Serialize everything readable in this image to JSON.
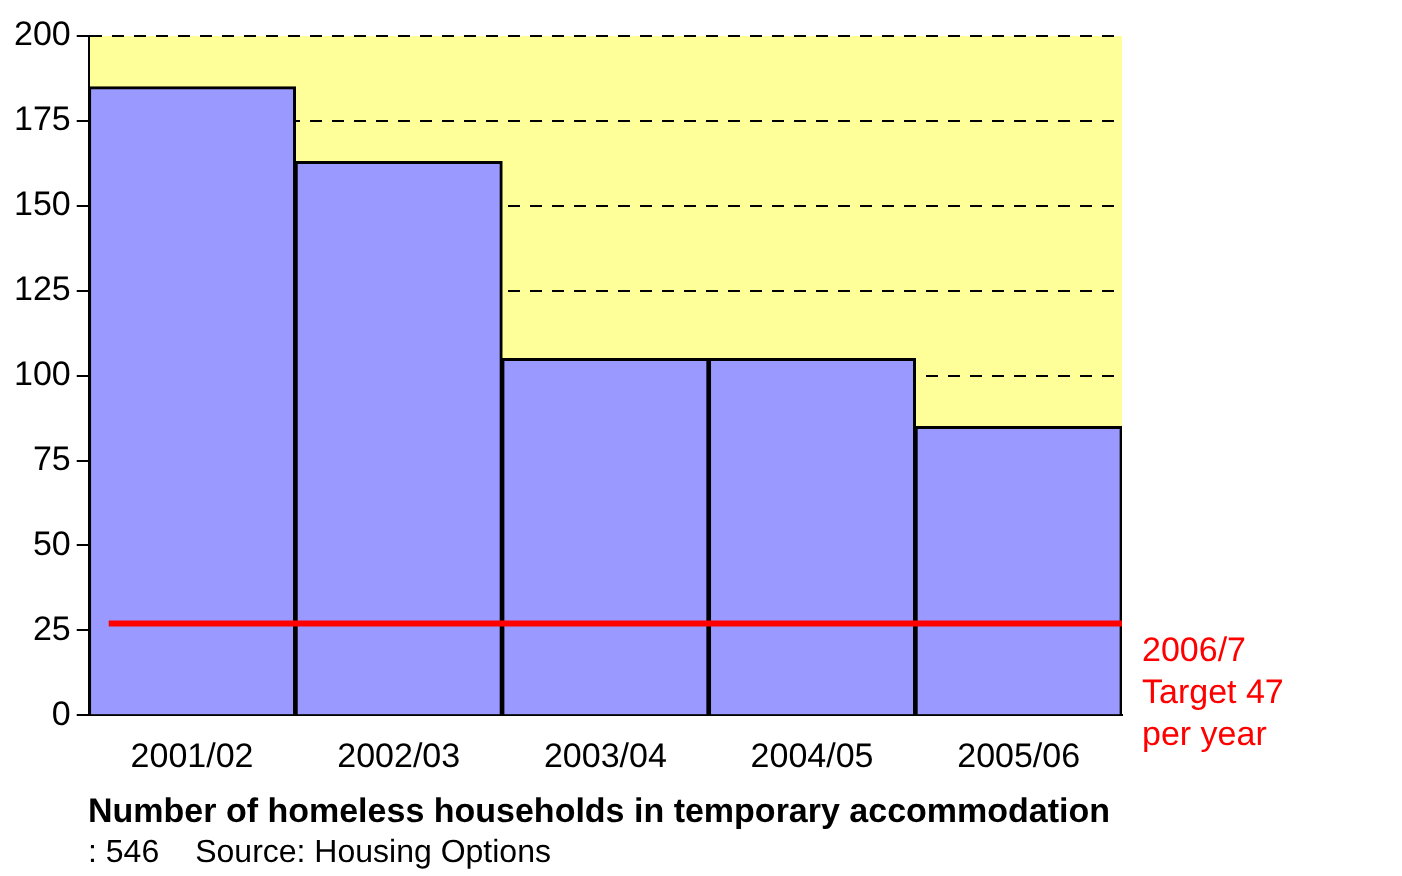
{
  "chart_data": {
    "type": "bar",
    "title": "Number of homeless households in temporary accommodation",
    "categories": [
      "2001/02",
      "2002/03",
      "2003/04",
      "2004/05",
      "2005/06"
    ],
    "values": [
      185,
      163,
      105,
      105,
      85
    ],
    "color": "#9999ff",
    "ylim": [
      0,
      200
    ],
    "yticks": [
      0,
      25,
      50,
      75,
      100,
      125,
      150,
      175,
      200
    ],
    "grid": "y",
    "ref_lines": [
      {
        "axis": "y",
        "value": 27,
        "label": "2006/7 Target 47 per year",
        "color": "#ff0000",
        "line_style": "solid"
      }
    ],
    "bands": [
      {
        "axis": "y",
        "from": 85,
        "to": 200,
        "color": "#ffff99"
      }
    ],
    "annotations": [
      ": 546",
      "Source: Housing Options"
    ]
  }
}
